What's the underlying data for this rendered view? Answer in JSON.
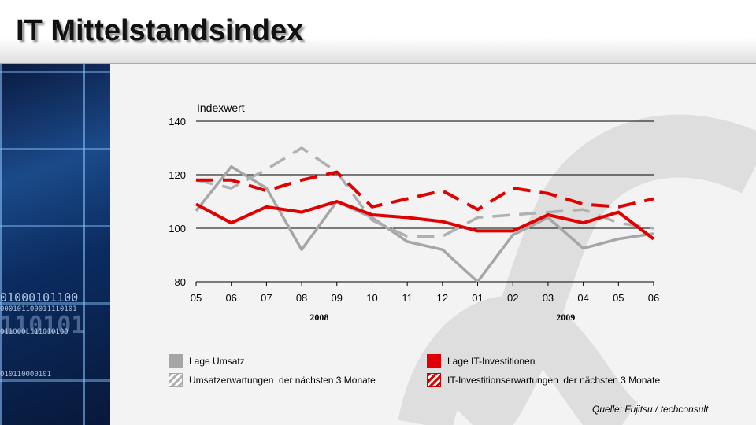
{
  "title": "IT Mittelstandsindex",
  "source": "Quelle: Fujitsu / techconsult",
  "left_panel_text": [
    "01000101100",
    "000101100011110101",
    "110101",
    "0110001111010100",
    "010110000101"
  ],
  "chart_data": {
    "type": "line",
    "ylabel": "Indexwert",
    "ylim": [
      80,
      140
    ],
    "yticks": [
      80,
      100,
      120,
      140
    ],
    "categories": [
      "05",
      "06",
      "07",
      "08",
      "09",
      "10",
      "11",
      "12",
      "01",
      "02",
      "03",
      "04",
      "05",
      "06"
    ],
    "year_labels": [
      {
        "label": "2008",
        "after_index": 3.5
      },
      {
        "label": "2009",
        "after_index": 10.5
      }
    ],
    "grid": true,
    "series": [
      {
        "name": "Lage Umsatz",
        "color": "#a6a6a6",
        "dashed": false,
        "values": [
          106.5,
          123,
          115,
          92,
          110,
          104,
          95,
          92,
          80,
          97.5,
          104,
          92.5,
          96,
          98
        ]
      },
      {
        "name": "Umsatzerwartungen  der nächsten 3 Monate",
        "color": "#b0b0b0",
        "dashed": true,
        "values": [
          118,
          115,
          122,
          130,
          121,
          103,
          97,
          97,
          104,
          105,
          106,
          107,
          102,
          100
        ]
      },
      {
        "name": "Lage IT-Investitionen",
        "color": "#e00000",
        "dashed": false,
        "values": [
          109,
          102,
          108,
          106,
          110,
          105,
          104,
          102.5,
          99,
          99,
          105,
          102,
          106,
          96
        ]
      },
      {
        "name": "IT-Investitionserwartungen  der nächsten 3 Monate",
        "color": "#e00000",
        "dashed": true,
        "values": [
          118,
          118,
          114,
          118,
          121,
          108,
          111,
          114,
          107,
          115,
          113,
          109,
          108,
          111
        ]
      }
    ]
  }
}
